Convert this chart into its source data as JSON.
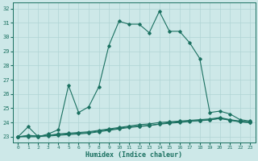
{
  "bg_color": "#cde8e8",
  "grid_color": "#b0d4d4",
  "line_color": "#1a7060",
  "xlabel": "Humidex (Indice chaleur)",
  "xlim": [
    -0.5,
    23.5
  ],
  "ylim": [
    22.6,
    32.4
  ],
  "yticks": [
    23,
    24,
    25,
    26,
    27,
    28,
    29,
    30,
    31,
    32
  ],
  "xticks": [
    0,
    1,
    2,
    3,
    4,
    5,
    6,
    7,
    8,
    9,
    10,
    11,
    12,
    13,
    14,
    15,
    16,
    17,
    18,
    19,
    20,
    21,
    22,
    23
  ],
  "line_main_x": [
    0,
    1,
    2,
    3,
    4,
    5,
    6,
    7,
    8,
    9,
    10,
    11,
    12,
    13,
    14,
    15,
    16,
    17,
    18,
    19,
    20,
    21,
    22,
    23
  ],
  "line_main_y": [
    23.0,
    23.7,
    23.0,
    23.2,
    23.5,
    26.6,
    24.7,
    25.1,
    26.5,
    29.4,
    31.1,
    30.9,
    30.9,
    30.3,
    31.8,
    30.4,
    30.4,
    29.6,
    28.5,
    24.7,
    24.8,
    24.6,
    24.2,
    24.1
  ],
  "line_a_x": [
    0,
    1,
    2,
    3,
    4,
    5,
    6,
    7,
    8,
    9,
    10,
    11,
    12,
    13,
    14,
    15,
    16,
    17,
    18,
    19,
    20,
    21,
    22,
    23
  ],
  "line_a_y": [
    23.0,
    23.0,
    23.0,
    23.1,
    23.15,
    23.2,
    23.25,
    23.3,
    23.4,
    23.5,
    23.6,
    23.7,
    23.75,
    23.8,
    23.9,
    24.0,
    24.05,
    24.1,
    24.15,
    24.2,
    24.3,
    24.15,
    24.05,
    24.0
  ],
  "line_b_x": [
    0,
    1,
    2,
    3,
    4,
    5,
    6,
    7,
    8,
    9,
    10,
    11,
    12,
    13,
    14,
    15,
    16,
    17,
    18,
    19,
    20,
    21,
    22,
    23
  ],
  "line_b_y": [
    23.0,
    23.05,
    23.05,
    23.1,
    23.2,
    23.25,
    23.3,
    23.35,
    23.45,
    23.55,
    23.65,
    23.75,
    23.85,
    23.9,
    24.0,
    24.05,
    24.1,
    24.15,
    24.2,
    24.25,
    24.35,
    24.2,
    24.1,
    24.05
  ],
  "line_c_x": [
    0,
    1,
    2,
    3,
    4,
    5,
    6,
    7,
    8,
    9,
    10,
    11,
    12,
    13,
    14,
    15,
    16,
    17,
    18,
    19,
    20,
    21,
    22,
    23
  ],
  "line_c_y": [
    23.0,
    23.1,
    23.05,
    23.05,
    23.1,
    23.15,
    23.2,
    23.25,
    23.35,
    23.45,
    23.55,
    23.65,
    23.72,
    23.78,
    23.88,
    23.95,
    24.0,
    24.08,
    24.12,
    24.18,
    24.28,
    24.18,
    24.05,
    24.0
  ]
}
